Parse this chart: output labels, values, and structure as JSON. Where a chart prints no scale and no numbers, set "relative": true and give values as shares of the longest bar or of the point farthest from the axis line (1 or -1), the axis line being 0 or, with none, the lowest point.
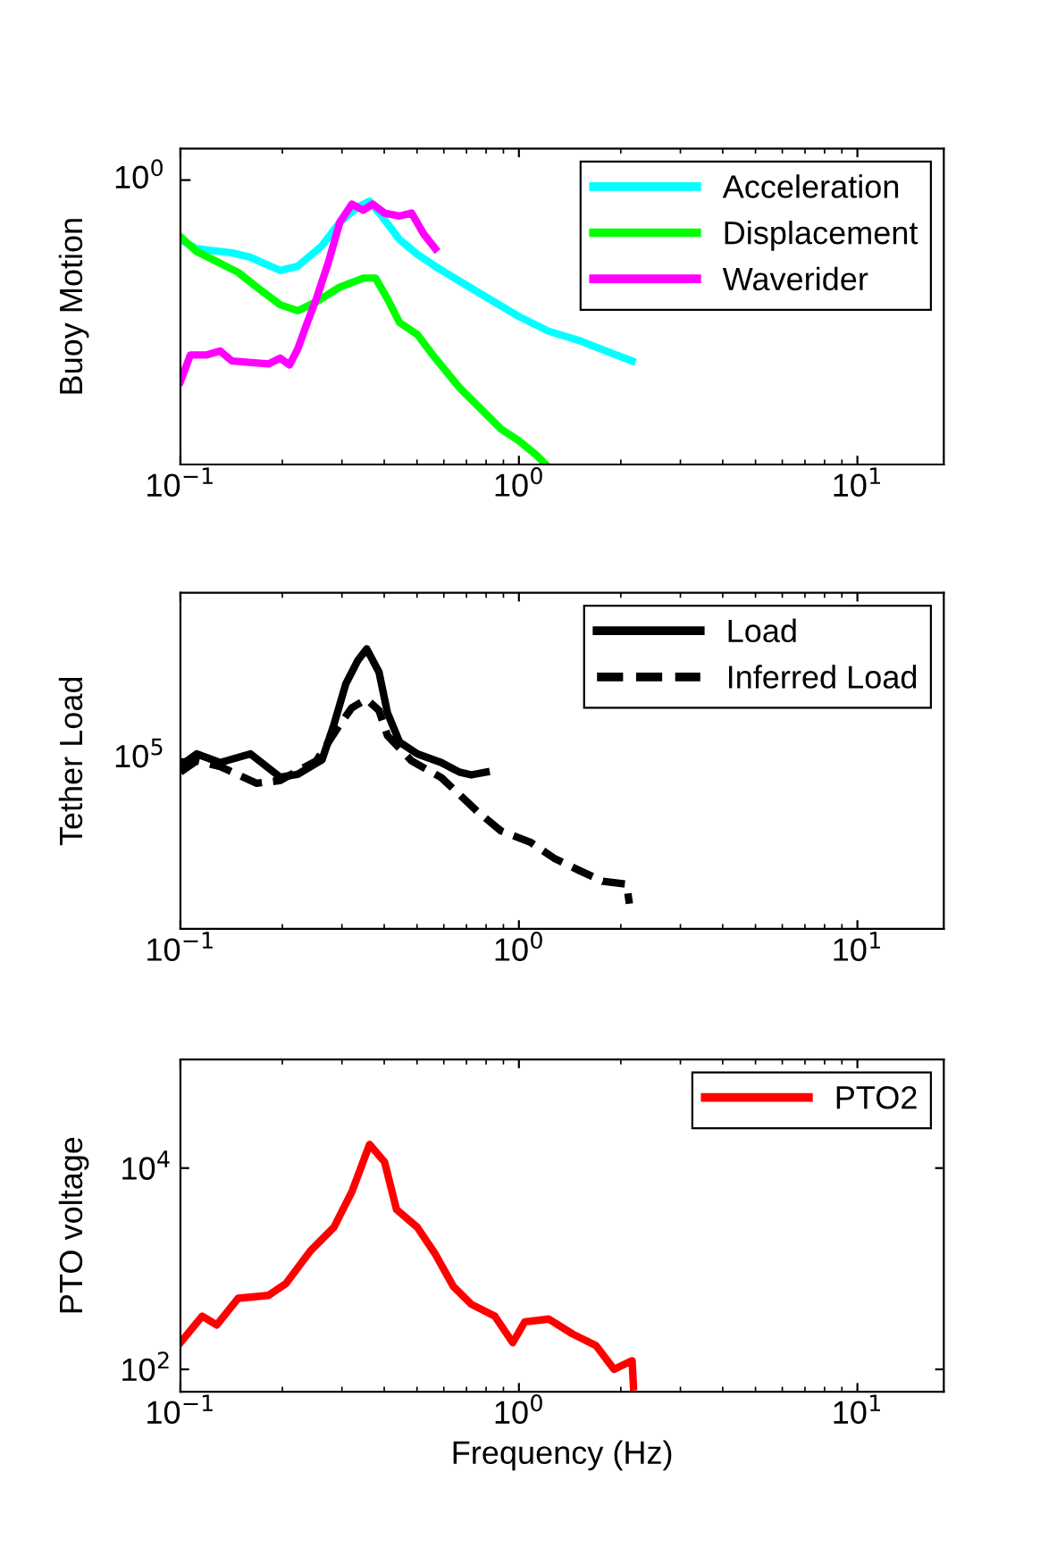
{
  "chart_data": [
    {
      "type": "line",
      "ylabel": "Buoy Motion",
      "relative": true,
      "annotations": [
        "10$^{0}$"
      ],
      "xlim": [
        0.1,
        18
      ],
      "xticks": [
        {
          "value": 0.1,
          "label": "10$^{−1}$"
        },
        {
          "value": 1,
          "label": "10$^{0}$"
        },
        {
          "value": 10,
          "label": "10$^{1}$"
        }
      ],
      "log": "x",
      "legend": "top right",
      "grid": false,
      "series": [
        {
          "name": "Acceleration",
          "color": "#00ffff",
          "x": [
            0.1,
            0.1116,
            0.142,
            0.161,
            0.197,
            0.222,
            0.262,
            0.296,
            0.334,
            0.362,
            0.393,
            0.444,
            0.501,
            0.566,
            0.667,
            0.817,
            1.0,
            1.225,
            1.5,
            1.84,
            2.16
          ],
          "values": [
            0.854,
            0.82,
            0.804,
            0.787,
            0.737,
            0.753,
            0.831,
            0.921,
            0.978,
            1.0,
            0.944,
            0.854,
            0.798,
            0.753,
            0.697,
            0.629,
            0.562,
            0.506,
            0.472,
            0.427,
            0.393
          ]
        },
        {
          "name": "Displacement",
          "color": "#00ff00",
          "x": [
            0.1,
            0.1116,
            0.131,
            0.148,
            0.168,
            0.197,
            0.222,
            0.252,
            0.296,
            0.347,
            0.377,
            0.409,
            0.444,
            0.501,
            0.566,
            0.667,
            0.753,
            0.885,
            1.0,
            1.13,
            1.2
          ],
          "values": [
            0.865,
            0.809,
            0.764,
            0.73,
            0.674,
            0.607,
            0.584,
            0.618,
            0.674,
            0.708,
            0.708,
            0.629,
            0.539,
            0.494,
            0.404,
            0.292,
            0.225,
            0.135,
            0.09,
            0.034,
            0.0
          ]
        },
        {
          "name": "Waverider",
          "color": "#ff00ff",
          "x": [
            0.1,
            0.107,
            0.119,
            0.131,
            0.142,
            0.182,
            0.197,
            0.21,
            0.222,
            0.237,
            0.252,
            0.273,
            0.296,
            0.321,
            0.347,
            0.37,
            0.401,
            0.444,
            0.482,
            0.523,
            0.566
          ],
          "values": [
            0.315,
            0.416,
            0.416,
            0.431,
            0.393,
            0.382,
            0.404,
            0.378,
            0.438,
            0.539,
            0.629,
            0.764,
            0.921,
            0.989,
            0.966,
            0.989,
            0.955,
            0.944,
            0.955,
            0.876,
            0.82
          ]
        }
      ]
    },
    {
      "type": "line",
      "ylabel": "Tether Load",
      "relative": true,
      "annotations": [
        "10$^{5}$"
      ],
      "xlim": [
        0.1,
        18
      ],
      "xticks": [
        {
          "value": 0.1,
          "label": "10$^{−1}$"
        },
        {
          "value": 1,
          "label": "10$^{0}$"
        },
        {
          "value": 10,
          "label": "10$^{1}$"
        }
      ],
      "log": "x",
      "legend": "top right",
      "grid": false,
      "series": [
        {
          "name": "Load",
          "color": "#000000",
          "line_style": "solid",
          "x": [
            0.1,
            0.1116,
            0.131,
            0.161,
            0.197,
            0.222,
            0.262,
            0.284,
            0.308,
            0.334,
            0.355,
            0.386,
            0.409,
            0.444,
            0.501,
            0.59,
            0.667,
            0.723,
            0.8
          ],
          "values": [
            0.583,
            0.625,
            0.594,
            0.625,
            0.542,
            0.552,
            0.604,
            0.729,
            0.875,
            0.958,
            1.0,
            0.917,
            0.771,
            0.667,
            0.625,
            0.594,
            0.56,
            0.55,
            0.56
          ]
        },
        {
          "name": "Inferred Load",
          "color": "#000000",
          "line_style": "dashed",
          "x": [
            0.1,
            0.1116,
            0.131,
            0.168,
            0.197,
            0.252,
            0.296,
            0.321,
            0.355,
            0.386,
            0.409,
            0.482,
            0.59,
            0.667,
            0.753,
            0.885,
            1.08,
            1.28,
            1.5,
            1.77,
            2.08,
            2.12
          ],
          "values": [
            0.56,
            0.6,
            0.58,
            0.52,
            0.53,
            0.6,
            0.73,
            0.79,
            0.82,
            0.78,
            0.69,
            0.6,
            0.54,
            0.48,
            0.42,
            0.35,
            0.31,
            0.25,
            0.21,
            0.17,
            0.16,
            0.09
          ]
        }
      ]
    },
    {
      "type": "line",
      "ylabel": "PTO voltage",
      "xlabel": "Frequency (Hz)",
      "xlim": [
        0.1,
        18
      ],
      "xticks": [
        {
          "value": 0.1,
          "label": "10$^{−1}$"
        },
        {
          "value": 1,
          "label": "10$^{0}$"
        },
        {
          "value": 10,
          "label": "10$^{1}$"
        }
      ],
      "ylim": [
        60,
        120000
      ],
      "yticks": [
        {
          "value": 100,
          "label": "10$^{2}$"
        },
        {
          "value": 10000,
          "label": "10$^{4}$"
        }
      ],
      "log": "xy",
      "legend": "top right",
      "grid": false,
      "series": [
        {
          "name": "PTO2",
          "color": "#ff0000",
          "x": [
            0.1,
            0.116,
            0.128,
            0.148,
            0.182,
            0.205,
            0.242,
            0.284,
            0.321,
            0.362,
            0.401,
            0.435,
            0.501,
            0.566,
            0.64,
            0.723,
            0.849,
            0.959,
            1.04,
            1.225,
            1.44,
            1.69,
            1.91,
            2.16,
            2.18
          ],
          "values": [
            184,
            338,
            276,
            508,
            543,
            712,
            1500,
            2580,
            5820,
            17200,
            11500,
            3870,
            2580,
            1400,
            667,
            444,
            338,
            184,
            296,
            316,
            225,
            172,
            100,
            122,
            67
          ]
        }
      ]
    }
  ]
}
